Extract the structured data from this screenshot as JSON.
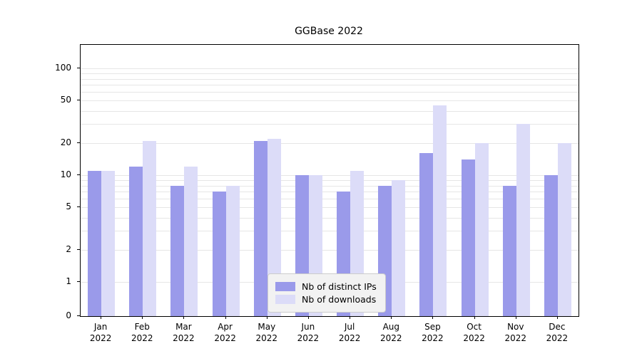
{
  "chart_data": {
    "type": "bar",
    "title": "GGBase 2022",
    "categories": [
      "Jan 2022",
      "Feb 2022",
      "Mar 2022",
      "Apr 2022",
      "May 2022",
      "Jun 2022",
      "Jul 2022",
      "Aug 2022",
      "Sep 2022",
      "Oct 2022",
      "Nov 2022",
      "Dec 2022"
    ],
    "series": [
      {
        "name": "Nb of distinct IPs",
        "color": "#9a9aea",
        "values": [
          11,
          12,
          8,
          7,
          21,
          10,
          7,
          8,
          16,
          14,
          8,
          10
        ]
      },
      {
        "name": "Nb of downloads",
        "color": "#dcdcf8",
        "values": [
          11,
          21,
          12,
          8,
          22,
          10,
          11,
          9,
          45,
          20,
          30,
          20
        ]
      }
    ],
    "yscale": "symlog",
    "yticks": [
      0,
      1,
      2,
      5,
      10,
      20,
      50,
      100
    ],
    "gridlines": [
      1,
      2,
      3,
      4,
      5,
      6,
      7,
      8,
      9,
      10,
      20,
      30,
      40,
      50,
      60,
      70,
      80,
      90,
      100
    ],
    "xlabel": "",
    "ylabel": "",
    "legend_position": "bottom-center",
    "grid": "horizontal"
  },
  "colors": {
    "grid": "#e6e6e6",
    "axis": "#000000",
    "legend_bg": "#f2f2f2",
    "legend_border": "#cccccc"
  }
}
